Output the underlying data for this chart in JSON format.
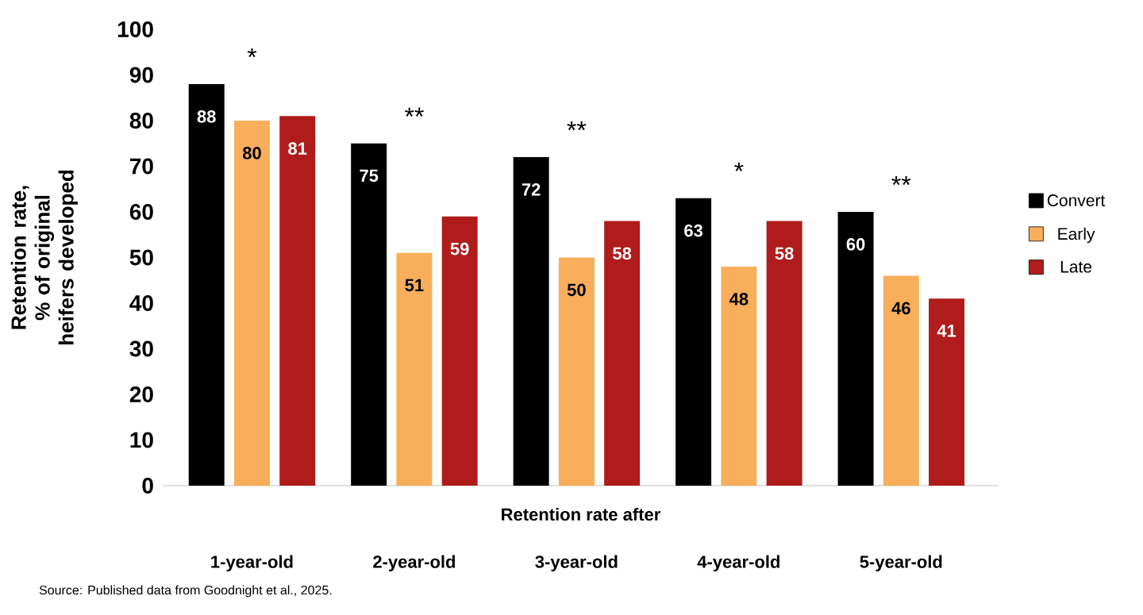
{
  "chart_data": {
    "type": "bar",
    "xlabel": "Retention rate after",
    "ylabel": "Retention rate, % of original heifers developed",
    "categories": [
      "1-year-old",
      "2-year-old",
      "3-year-old",
      "4-year-old",
      "5-year-old"
    ],
    "series": [
      {
        "name": "Convert",
        "color": "#000000",
        "values": [
          88,
          75,
          72,
          63,
          60
        ]
      },
      {
        "name": "Early",
        "color": "#f9ae5b",
        "values": [
          80,
          51,
          50,
          48,
          46
        ]
      },
      {
        "name": "Late",
        "color": "#b01c1c",
        "values": [
          81,
          59,
          58,
          58,
          41
        ]
      }
    ],
    "ylim": [
      0,
      100
    ],
    "yticks": [
      0,
      10,
      20,
      30,
      40,
      50,
      60,
      70,
      80,
      90,
      100
    ],
    "data_labels": true,
    "legend": "right",
    "grid": false,
    "annotations": [
      "*",
      "**",
      "**",
      "*",
      "**",
      "Source: Published data from Goodnight et al., 2025."
    ]
  }
}
